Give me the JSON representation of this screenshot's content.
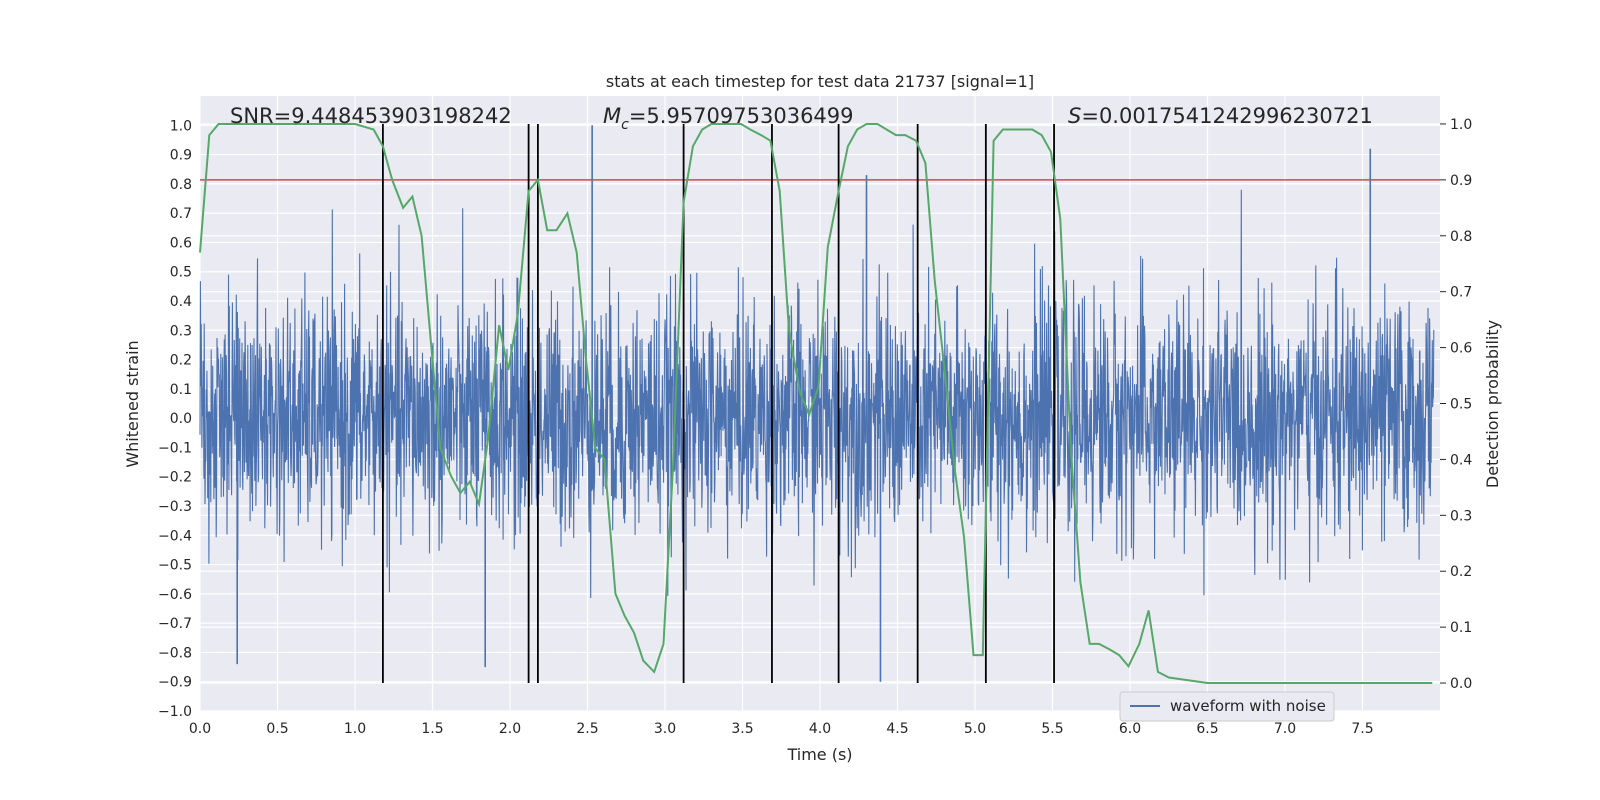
{
  "chart_data": {
    "type": "line",
    "title": "stats at each timestep for test data 21737 [signal=1]",
    "xlabel": "Time (s)",
    "ylabel_left": "Whitened strain",
    "ylabel_right": "Detection probability",
    "xlim": [
      0.0,
      8.0
    ],
    "ylim_left": [
      -1.0,
      1.1
    ],
    "ylim_right": [
      -0.05,
      1.05
    ],
    "x_ticks": [
      0.0,
      0.5,
      1.0,
      1.5,
      2.0,
      2.5,
      3.0,
      3.5,
      4.0,
      4.5,
      5.0,
      5.5,
      6.0,
      6.5,
      7.0,
      7.5
    ],
    "x_tick_labels": [
      "0.0",
      "0.5",
      "1.0",
      "1.5",
      "2.0",
      "2.5",
      "3.0",
      "3.5",
      "4.0",
      "4.5",
      "5.0",
      "5.5",
      "6.0",
      "6.5",
      "7.0",
      "7.5"
    ],
    "y_left_ticks": [
      -1.0,
      -0.9,
      -0.8,
      -0.7,
      -0.6,
      -0.5,
      -0.4,
      -0.3,
      -0.2,
      -0.1,
      0.0,
      0.1,
      0.2,
      0.3,
      0.4,
      0.5,
      0.6,
      0.7,
      0.8,
      0.9,
      1.0
    ],
    "y_left_tick_labels": [
      "−1.0",
      "−0.9",
      "−0.8",
      "−0.7",
      "−0.6",
      "−0.5",
      "−0.4",
      "−0.3",
      "−0.2",
      "−0.1",
      "0.0",
      "0.1",
      "0.2",
      "0.3",
      "0.4",
      "0.5",
      "0.6",
      "0.7",
      "0.8",
      "0.9",
      "1.0"
    ],
    "y_right_ticks": [
      0.0,
      0.1,
      0.2,
      0.3,
      0.4,
      0.5,
      0.6,
      0.7,
      0.8,
      0.9,
      1.0
    ],
    "y_right_tick_labels": [
      "0.0",
      "0.1",
      "0.2",
      "0.3",
      "0.4",
      "0.5",
      "0.6",
      "0.7",
      "0.8",
      "0.9",
      "1.0"
    ],
    "annotations": {
      "snr": "SNR=9.448453903198242",
      "mc_symbol": "M",
      "mc_sub": "c",
      "mc_value": "=5.95709753036499",
      "s_symbol": "S",
      "s_value": "=0.0017541242996230721"
    },
    "threshold": {
      "value": 0.9,
      "axis": "right",
      "color": "#c44e52"
    },
    "vertical_lines": [
      1.18,
      2.12,
      2.18,
      3.12,
      3.69,
      4.12,
      4.63,
      5.07,
      5.51
    ],
    "vertical_line_range_right": [
      0.0,
      1.0
    ],
    "series": [
      {
        "name": "waveform with noise",
        "axis": "left",
        "color": "#4c72b0",
        "kind": "noise",
        "approx_sigma": 0.2,
        "peaks": [
          {
            "x": 2.53,
            "y": 1.0
          },
          {
            "x": 4.39,
            "y": -0.9
          },
          {
            "x": 4.3,
            "y": 0.83
          },
          {
            "x": 7.55,
            "y": 0.92
          },
          {
            "x": 1.84,
            "y": -0.85
          },
          {
            "x": 0.24,
            "y": -0.84
          }
        ]
      },
      {
        "name": "detection probability",
        "axis": "right",
        "color": "#55a868",
        "x": [
          0.0,
          0.06,
          0.12,
          0.25,
          0.5,
          0.75,
          1.0,
          1.12,
          1.18,
          1.24,
          1.31,
          1.37,
          1.43,
          1.49,
          1.55,
          1.62,
          1.68,
          1.74,
          1.8,
          1.86,
          1.93,
          1.99,
          2.05,
          2.12,
          2.18,
          2.24,
          2.3,
          2.37,
          2.43,
          2.49,
          2.55,
          2.61,
          2.68,
          2.74,
          2.8,
          2.86,
          2.93,
          2.99,
          3.05,
          3.12,
          3.18,
          3.24,
          3.3,
          3.37,
          3.43,
          3.49,
          3.55,
          3.62,
          3.68,
          3.74,
          3.8,
          3.87,
          3.93,
          3.99,
          4.05,
          4.12,
          4.18,
          4.24,
          4.3,
          4.37,
          4.43,
          4.49,
          4.55,
          4.62,
          4.68,
          4.74,
          4.8,
          4.87,
          4.93,
          4.99,
          5.05,
          5.12,
          5.18,
          5.24,
          5.3,
          5.37,
          5.43,
          5.49,
          5.55,
          5.62,
          5.68,
          5.74,
          5.8,
          5.87,
          5.93,
          5.99,
          6.06,
          6.12,
          6.18,
          6.25,
          6.5,
          6.75,
          7.0,
          7.5,
          7.95
        ],
        "y": [
          0.77,
          0.98,
          1.0,
          1.0,
          1.0,
          1.0,
          1.0,
          0.99,
          0.96,
          0.9,
          0.85,
          0.87,
          0.8,
          0.61,
          0.42,
          0.37,
          0.34,
          0.36,
          0.32,
          0.44,
          0.64,
          0.56,
          0.66,
          0.88,
          0.9,
          0.81,
          0.81,
          0.84,
          0.77,
          0.58,
          0.42,
          0.4,
          0.16,
          0.12,
          0.09,
          0.04,
          0.02,
          0.07,
          0.38,
          0.86,
          0.96,
          0.99,
          1.0,
          1.0,
          1.0,
          1.0,
          0.99,
          0.98,
          0.97,
          0.88,
          0.63,
          0.52,
          0.48,
          0.53,
          0.78,
          0.88,
          0.96,
          0.99,
          1.0,
          1.0,
          0.99,
          0.98,
          0.98,
          0.97,
          0.93,
          0.72,
          0.57,
          0.38,
          0.26,
          0.05,
          0.05,
          0.97,
          0.99,
          0.99,
          0.99,
          0.99,
          0.98,
          0.95,
          0.83,
          0.41,
          0.18,
          0.07,
          0.07,
          0.06,
          0.05,
          0.03,
          0.07,
          0.13,
          0.02,
          0.01,
          0.0,
          0.0,
          0.0,
          0.0,
          0.0
        ]
      }
    ],
    "legend": {
      "label": "waveform with noise",
      "position": "lower-right"
    }
  },
  "colors": {
    "axes_bg": "#eaeaf2",
    "grid": "#ffffff",
    "noise": "#4c72b0",
    "probability": "#55a868",
    "threshold": "#c44e52",
    "vlines": "#000000",
    "text": "#262626"
  }
}
